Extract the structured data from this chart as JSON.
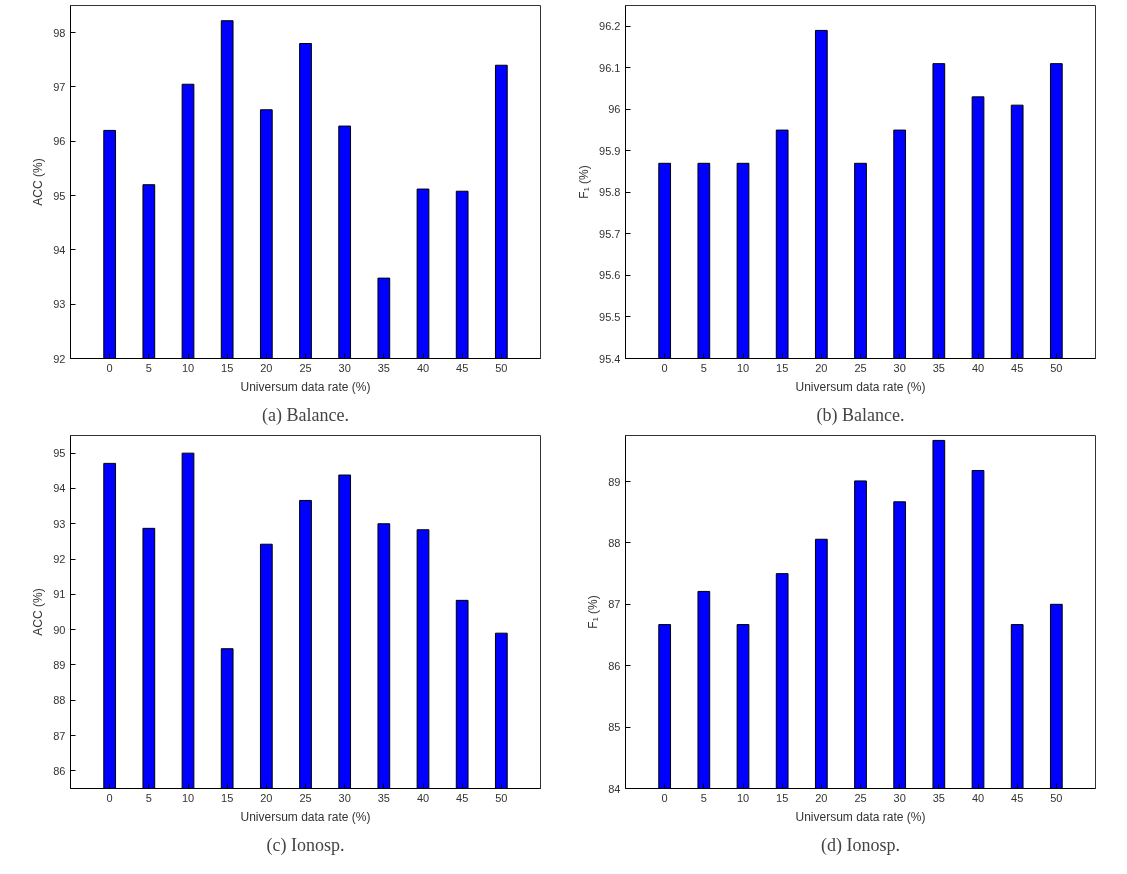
{
  "chart_data": [
    {
      "type": "bar",
      "title": "(a) Balance.",
      "xlabel": "Universum data rate (%)",
      "ylabel": "ACC (%)",
      "color": "#0000ff",
      "x": [
        0,
        5,
        10,
        15,
        20,
        25,
        30,
        35,
        40,
        45,
        50
      ],
      "values": [
        96.2,
        95.2,
        97.05,
        98.22,
        96.58,
        97.8,
        96.28,
        93.48,
        95.12,
        95.08,
        97.4
      ],
      "xlim": [
        -5,
        55
      ],
      "xticks": [
        0,
        5,
        10,
        15,
        20,
        25,
        30,
        35,
        40,
        45,
        50
      ],
      "ylim": [
        92,
        98.5
      ],
      "yticks": [
        92,
        93,
        94,
        95,
        96,
        97,
        98
      ]
    },
    {
      "type": "bar",
      "title": "(b) Balance.",
      "xlabel": "Universum data rate (%)",
      "ylabel": "F₁ (%)",
      "color": "#0000ff",
      "x": [
        0,
        5,
        10,
        15,
        20,
        25,
        30,
        35,
        40,
        45,
        50
      ],
      "values": [
        95.87,
        95.87,
        95.87,
        95.95,
        96.19,
        95.87,
        95.95,
        96.11,
        96.03,
        96.01,
        96.11
      ],
      "xlim": [
        -5,
        55
      ],
      "xticks": [
        0,
        5,
        10,
        15,
        20,
        25,
        30,
        35,
        40,
        45,
        50
      ],
      "ylim": [
        95.4,
        96.25
      ],
      "yticks": [
        95.4,
        95.5,
        95.6,
        95.7,
        95.8,
        95.9,
        96,
        96.1,
        96.2
      ]
    },
    {
      "type": "bar",
      "title": "(c) Ionosp.",
      "xlabel": "Universum data rate (%)",
      "ylabel": "ACC (%)",
      "color": "#0000ff",
      "x": [
        0,
        5,
        10,
        15,
        20,
        25,
        30,
        35,
        40,
        45,
        50
      ],
      "values": [
        94.71,
        92.87,
        95.0,
        89.46,
        92.42,
        93.66,
        94.38,
        93.0,
        92.83,
        90.83,
        89.9
      ],
      "xlim": [
        -5,
        55
      ],
      "xticks": [
        0,
        5,
        10,
        15,
        20,
        25,
        30,
        35,
        40,
        45,
        50
      ],
      "ylim": [
        85.5,
        95.5
      ],
      "yticks": [
        86,
        87,
        88,
        89,
        90,
        91,
        92,
        93,
        94,
        95
      ]
    },
    {
      "type": "bar",
      "title": "(d) Ionosp.",
      "xlabel": "Universum data rate (%)",
      "ylabel": "F₁ (%)",
      "color": "#0000ff",
      "x": [
        0,
        5,
        10,
        15,
        20,
        25,
        30,
        35,
        40,
        45,
        50
      ],
      "values": [
        86.67,
        87.21,
        86.67,
        87.5,
        88.06,
        89.01,
        88.67,
        89.67,
        89.18,
        86.67,
        87.0
      ],
      "xlim": [
        -5,
        55
      ],
      "xticks": [
        0,
        5,
        10,
        15,
        20,
        25,
        30,
        35,
        40,
        45,
        50
      ],
      "ylim": [
        84,
        89.75
      ],
      "yticks": [
        84,
        85,
        86,
        87,
        88,
        89
      ]
    }
  ]
}
